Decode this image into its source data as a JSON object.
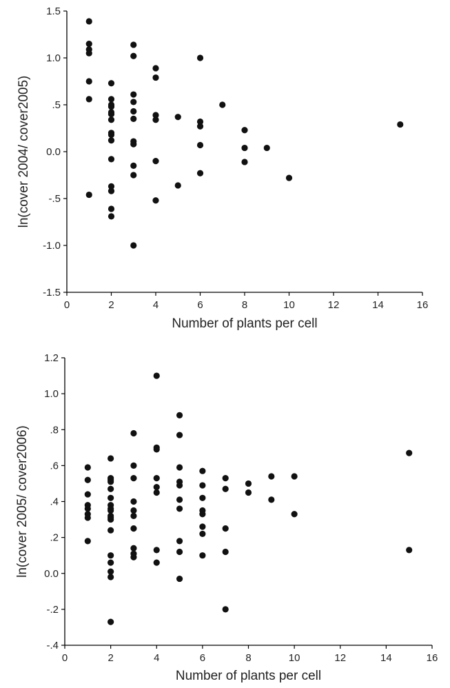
{
  "chart_data": [
    {
      "type": "scatter",
      "title": "",
      "xlabel": "Number of plants per cell",
      "ylabel": "ln(cover 2004/ cover2005)",
      "xlim": [
        0,
        16
      ],
      "ylim": [
        -1.5,
        1.5
      ],
      "x_ticks": [
        0,
        2,
        4,
        6,
        8,
        10,
        12,
        14,
        16
      ],
      "x_tick_labels": [
        "0",
        "2",
        "4",
        "6",
        "8",
        "10",
        "12",
        "14",
        "16"
      ],
      "y_ticks": [
        -1.5,
        -1.0,
        -0.5,
        0.0,
        0.5,
        1.0,
        1.5
      ],
      "y_tick_labels": [
        "-1.5",
        "-1.0",
        "-.5",
        "0.0",
        ".5",
        "1.0",
        "1.5"
      ],
      "grid": false,
      "legend": "none",
      "marker_color": "#111111",
      "series": [
        {
          "points": [
            [
              1,
              1.39
            ],
            [
              1,
              1.15
            ],
            [
              1,
              1.09
            ],
            [
              1,
              1.05
            ],
            [
              1,
              0.75
            ],
            [
              1,
              0.56
            ],
            [
              1,
              -0.46
            ],
            [
              2,
              0.73
            ],
            [
              2,
              0.56
            ],
            [
              2,
              0.5
            ],
            [
              2,
              0.48
            ],
            [
              2,
              0.42
            ],
            [
              2,
              0.4
            ],
            [
              2,
              0.34
            ],
            [
              2,
              0.2
            ],
            [
              2,
              0.18
            ],
            [
              2,
              0.12
            ],
            [
              2,
              -0.08
            ],
            [
              2,
              -0.37
            ],
            [
              2,
              -0.42
            ],
            [
              2,
              -0.61
            ],
            [
              2,
              -0.69
            ],
            [
              3,
              1.14
            ],
            [
              3,
              1.02
            ],
            [
              3,
              0.61
            ],
            [
              3,
              0.53
            ],
            [
              3,
              0.43
            ],
            [
              3,
              0.35
            ],
            [
              3,
              0.11
            ],
            [
              3,
              0.08
            ],
            [
              3,
              -0.15
            ],
            [
              3,
              -0.25
            ],
            [
              3,
              -1.0
            ],
            [
              4,
              0.89
            ],
            [
              4,
              0.79
            ],
            [
              4,
              0.39
            ],
            [
              4,
              0.34
            ],
            [
              4,
              -0.1
            ],
            [
              4,
              -0.52
            ],
            [
              5,
              0.37
            ],
            [
              5,
              -0.36
            ],
            [
              6,
              1.0
            ],
            [
              6,
              0.32
            ],
            [
              6,
              0.27
            ],
            [
              6,
              0.07
            ],
            [
              6,
              -0.23
            ],
            [
              7,
              0.5
            ],
            [
              8,
              0.23
            ],
            [
              8,
              0.04
            ],
            [
              8,
              -0.11
            ],
            [
              9,
              0.04
            ],
            [
              10,
              -0.28
            ],
            [
              15,
              0.29
            ]
          ]
        }
      ]
    },
    {
      "type": "scatter",
      "title": "",
      "xlabel": "Number of plants per cell",
      "ylabel": "ln(cover 2005/ cover2006)",
      "xlim": [
        0,
        16
      ],
      "ylim": [
        -0.4,
        1.2
      ],
      "x_ticks": [
        0,
        2,
        4,
        6,
        8,
        10,
        12,
        14,
        16
      ],
      "x_tick_labels": [
        "0",
        "2",
        "4",
        "6",
        "8",
        "10",
        "12",
        "14",
        "16"
      ],
      "y_ticks": [
        -0.4,
        -0.2,
        0.0,
        0.2,
        0.4,
        0.6,
        0.8,
        1.0,
        1.2
      ],
      "y_tick_labels": [
        "-.4",
        "-.2",
        "0.0",
        ".2",
        ".4",
        ".6",
        ".8",
        "1.0",
        "1.2"
      ],
      "grid": false,
      "legend": "none",
      "marker_color": "#111111",
      "series": [
        {
          "points": [
            [
              1,
              0.59
            ],
            [
              1,
              0.52
            ],
            [
              1,
              0.44
            ],
            [
              1,
              0.38
            ],
            [
              1,
              0.36
            ],
            [
              1,
              0.33
            ],
            [
              1,
              0.31
            ],
            [
              1,
              0.18
            ],
            [
              2,
              0.64
            ],
            [
              2,
              0.53
            ],
            [
              2,
              0.52
            ],
            [
              2,
              0.51
            ],
            [
              2,
              0.47
            ],
            [
              2,
              0.42
            ],
            [
              2,
              0.38
            ],
            [
              2,
              0.36
            ],
            [
              2,
              0.35
            ],
            [
              2,
              0.32
            ],
            [
              2,
              0.31
            ],
            [
              2,
              0.3
            ],
            [
              2,
              0.24
            ],
            [
              2,
              0.1
            ],
            [
              2,
              0.06
            ],
            [
              2,
              0.01
            ],
            [
              2,
              -0.02
            ],
            [
              2,
              -0.27
            ],
            [
              3,
              0.78
            ],
            [
              3,
              0.6
            ],
            [
              3,
              0.53
            ],
            [
              3,
              0.4
            ],
            [
              3,
              0.35
            ],
            [
              3,
              0.32
            ],
            [
              3,
              0.25
            ],
            [
              3,
              0.14
            ],
            [
              3,
              0.11
            ],
            [
              3,
              0.09
            ],
            [
              4,
              1.1
            ],
            [
              4,
              0.7
            ],
            [
              4,
              0.69
            ],
            [
              4,
              0.53
            ],
            [
              4,
              0.48
            ],
            [
              4,
              0.45
            ],
            [
              4,
              0.13
            ],
            [
              4,
              0.06
            ],
            [
              5,
              0.88
            ],
            [
              5,
              0.77
            ],
            [
              5,
              0.59
            ],
            [
              5,
              0.51
            ],
            [
              5,
              0.49
            ],
            [
              5,
              0.41
            ],
            [
              5,
              0.36
            ],
            [
              5,
              0.18
            ],
            [
              5,
              0.12
            ],
            [
              5,
              -0.03
            ],
            [
              6,
              0.57
            ],
            [
              6,
              0.49
            ],
            [
              6,
              0.42
            ],
            [
              6,
              0.35
            ],
            [
              6,
              0.33
            ],
            [
              6,
              0.26
            ],
            [
              6,
              0.22
            ],
            [
              6,
              0.1
            ],
            [
              7,
              0.53
            ],
            [
              7,
              0.47
            ],
            [
              7,
              0.25
            ],
            [
              7,
              0.12
            ],
            [
              7,
              -0.2
            ],
            [
              8,
              0.5
            ],
            [
              8,
              0.45
            ],
            [
              9,
              0.54
            ],
            [
              9,
              0.41
            ],
            [
              10,
              0.54
            ],
            [
              10,
              0.33
            ],
            [
              15,
              0.67
            ],
            [
              15,
              0.13
            ]
          ]
        }
      ]
    }
  ]
}
